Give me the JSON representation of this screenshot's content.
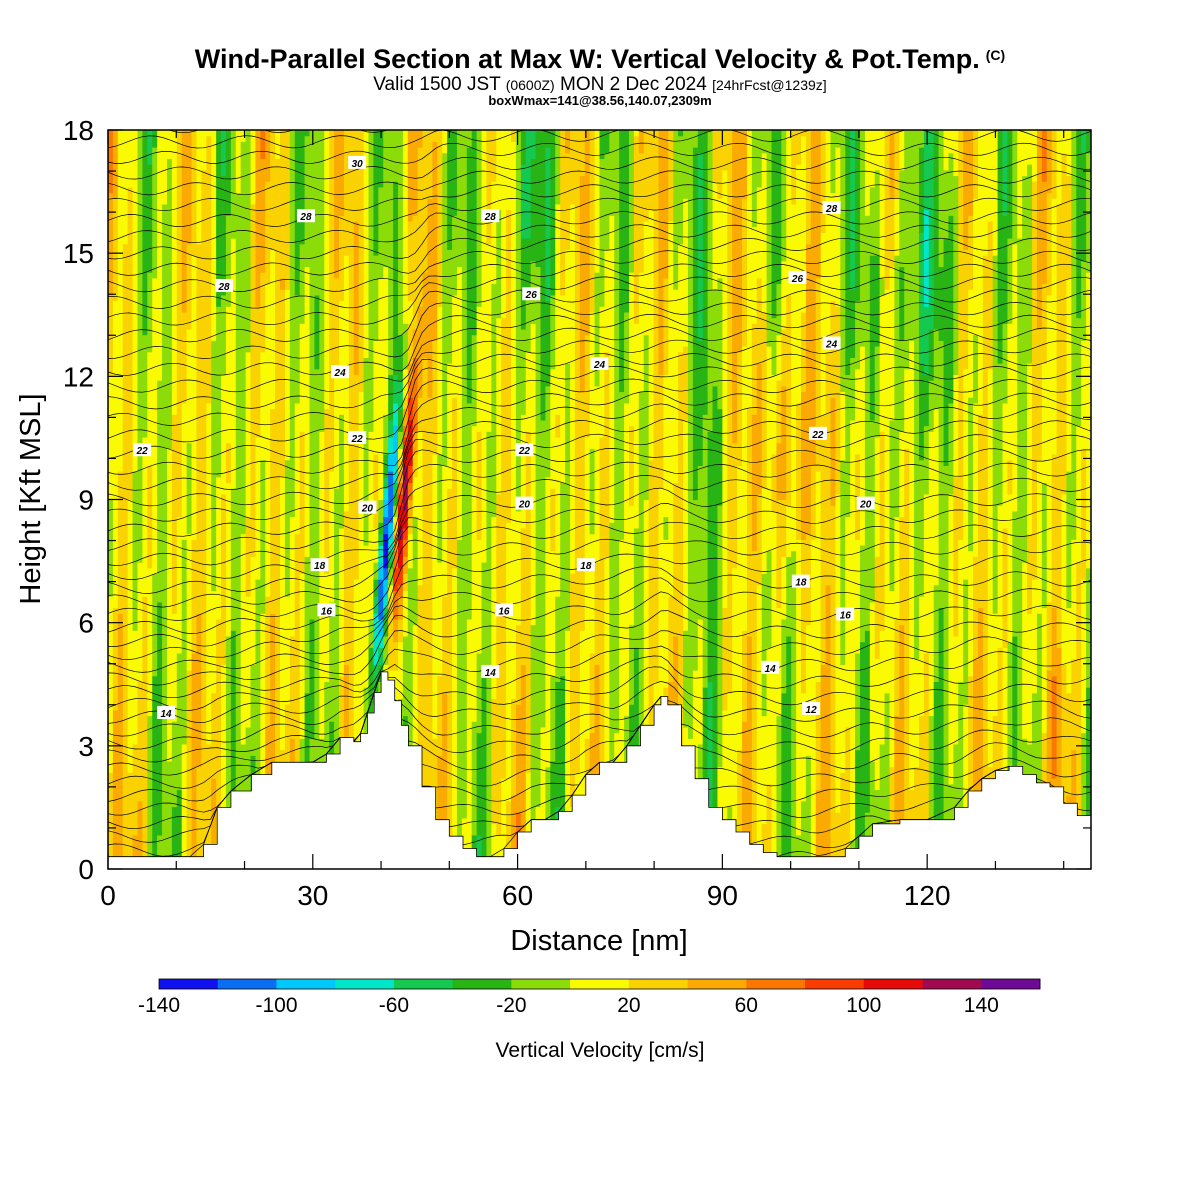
{
  "header": {
    "title": "Wind-Parallel Section at Max W: Vertical Velocity & Pot.Temp.",
    "copyright": "(C)",
    "valid_a": "Valid 1500 JST",
    "valid_b": "(0600Z)",
    "valid_c": "MON 2 Dec 2024",
    "valid_d": "[24hrFcst@1239z]",
    "box": "boxWmax=141@38.56,140.07,2309m"
  },
  "chart_data": {
    "type": "heatmap",
    "xlabel": "Distance [nm]",
    "ylabel": "Height [Kft MSL]",
    "xlim": [
      0,
      144
    ],
    "ylim": [
      0,
      18
    ],
    "xticks": [
      0,
      30,
      60,
      90,
      120
    ],
    "yticks": [
      0,
      3,
      6,
      9,
      12,
      15,
      18
    ],
    "colorbar": {
      "title": "Vertical Velocity [cm/s]",
      "levels": [
        -140,
        -120,
        -100,
        -80,
        -60,
        -40,
        -20,
        0,
        20,
        40,
        60,
        80,
        100,
        120,
        140,
        160
      ],
      "tick_labels": [
        "-140",
        "-100",
        "-60",
        "-20",
        "20",
        "60",
        "100",
        "140"
      ],
      "tick_values": [
        -140,
        -100,
        -60,
        -20,
        20,
        60,
        100,
        140
      ],
      "colors": [
        "#1010f0",
        "#0a6ef5",
        "#00c8fa",
        "#00e6c8",
        "#14c850",
        "#28b414",
        "#8cdc0a",
        "#fafa00",
        "#fad200",
        "#faaa00",
        "#fa7800",
        "#fa3c00",
        "#e60a0a",
        "#a00a50",
        "#6e0a96"
      ]
    },
    "terrain_kft": [
      [
        0,
        0.3
      ],
      [
        4,
        0.3
      ],
      [
        8,
        0.3
      ],
      [
        12,
        0.3
      ],
      [
        14,
        0.6
      ],
      [
        16,
        1.5
      ],
      [
        18,
        1.9
      ],
      [
        21,
        2.3
      ],
      [
        24,
        2.6
      ],
      [
        28,
        2.6
      ],
      [
        30,
        2.6
      ],
      [
        32,
        2.8
      ],
      [
        34,
        3.2
      ],
      [
        36,
        3.1
      ],
      [
        37,
        3.3
      ],
      [
        38,
        3.8
      ],
      [
        39,
        4.3
      ],
      [
        40,
        4.8
      ],
      [
        41,
        4.6
      ],
      [
        42,
        4.1
      ],
      [
        43,
        3.5
      ],
      [
        44,
        3.0
      ],
      [
        46,
        2.0
      ],
      [
        48,
        1.2
      ],
      [
        50,
        0.8
      ],
      [
        52,
        0.5
      ],
      [
        54,
        0.3
      ],
      [
        56,
        0.3
      ],
      [
        58,
        0.5
      ],
      [
        60,
        0.9
      ],
      [
        62,
        1.2
      ],
      [
        64,
        1.2
      ],
      [
        66,
        1.4
      ],
      [
        68,
        1.8
      ],
      [
        70,
        2.3
      ],
      [
        72,
        2.6
      ],
      [
        74,
        2.6
      ],
      [
        76,
        3.0
      ],
      [
        78,
        3.5
      ],
      [
        80,
        4.0
      ],
      [
        81,
        4.2
      ],
      [
        82,
        4.0
      ],
      [
        84,
        3.0
      ],
      [
        86,
        2.2
      ],
      [
        88,
        1.5
      ],
      [
        90,
        1.2
      ],
      [
        92,
        0.9
      ],
      [
        94,
        0.6
      ],
      [
        96,
        0.4
      ],
      [
        98,
        0.3
      ],
      [
        100,
        0.3
      ],
      [
        104,
        0.3
      ],
      [
        108,
        0.5
      ],
      [
        110,
        0.8
      ],
      [
        112,
        1.1
      ],
      [
        116,
        1.2
      ],
      [
        120,
        1.2
      ],
      [
        124,
        1.5
      ],
      [
        126,
        1.9
      ],
      [
        128,
        2.2
      ],
      [
        130,
        2.4
      ],
      [
        132,
        2.5
      ],
      [
        134,
        2.3
      ],
      [
        136,
        2.1
      ],
      [
        138,
        2.0
      ],
      [
        140,
        1.6
      ],
      [
        142,
        1.3
      ],
      [
        144,
        1.2
      ]
    ],
    "contour_labels": [
      {
        "text": "30",
        "x": 36.5,
        "y": 17.2
      },
      {
        "text": "28",
        "x": 29,
        "y": 15.9
      },
      {
        "text": "28",
        "x": 56,
        "y": 15.9
      },
      {
        "text": "28",
        "x": 106,
        "y": 16.1
      },
      {
        "text": "28",
        "x": 17,
        "y": 14.2
      },
      {
        "text": "26",
        "x": 62,
        "y": 14.0
      },
      {
        "text": "26",
        "x": 101,
        "y": 14.4
      },
      {
        "text": "24",
        "x": 34,
        "y": 12.1
      },
      {
        "text": "24",
        "x": 72,
        "y": 12.3
      },
      {
        "text": "24",
        "x": 106,
        "y": 12.8
      },
      {
        "text": "22",
        "x": 36.5,
        "y": 10.5
      },
      {
        "text": "22",
        "x": 5,
        "y": 10.2
      },
      {
        "text": "22",
        "x": 61,
        "y": 10.2
      },
      {
        "text": "22",
        "x": 104,
        "y": 10.6
      },
      {
        "text": "20",
        "x": 38,
        "y": 8.8
      },
      {
        "text": "20",
        "x": 61,
        "y": 8.9
      },
      {
        "text": "20",
        "x": 111,
        "y": 8.9
      },
      {
        "text": "18",
        "x": 31,
        "y": 7.4
      },
      {
        "text": "18",
        "x": 70,
        "y": 7.4
      },
      {
        "text": "18",
        "x": 101.5,
        "y": 7.0
      },
      {
        "text": "16",
        "x": 32,
        "y": 6.3
      },
      {
        "text": "16",
        "x": 58,
        "y": 6.3
      },
      {
        "text": "16",
        "x": 108,
        "y": 6.2
      },
      {
        "text": "14",
        "x": 56,
        "y": 4.8
      },
      {
        "text": "14",
        "x": 97,
        "y": 4.9
      },
      {
        "text": "14",
        "x": 8.5,
        "y": 3.8
      },
      {
        "text": "12",
        "x": 103,
        "y": 3.9
      }
    ]
  }
}
